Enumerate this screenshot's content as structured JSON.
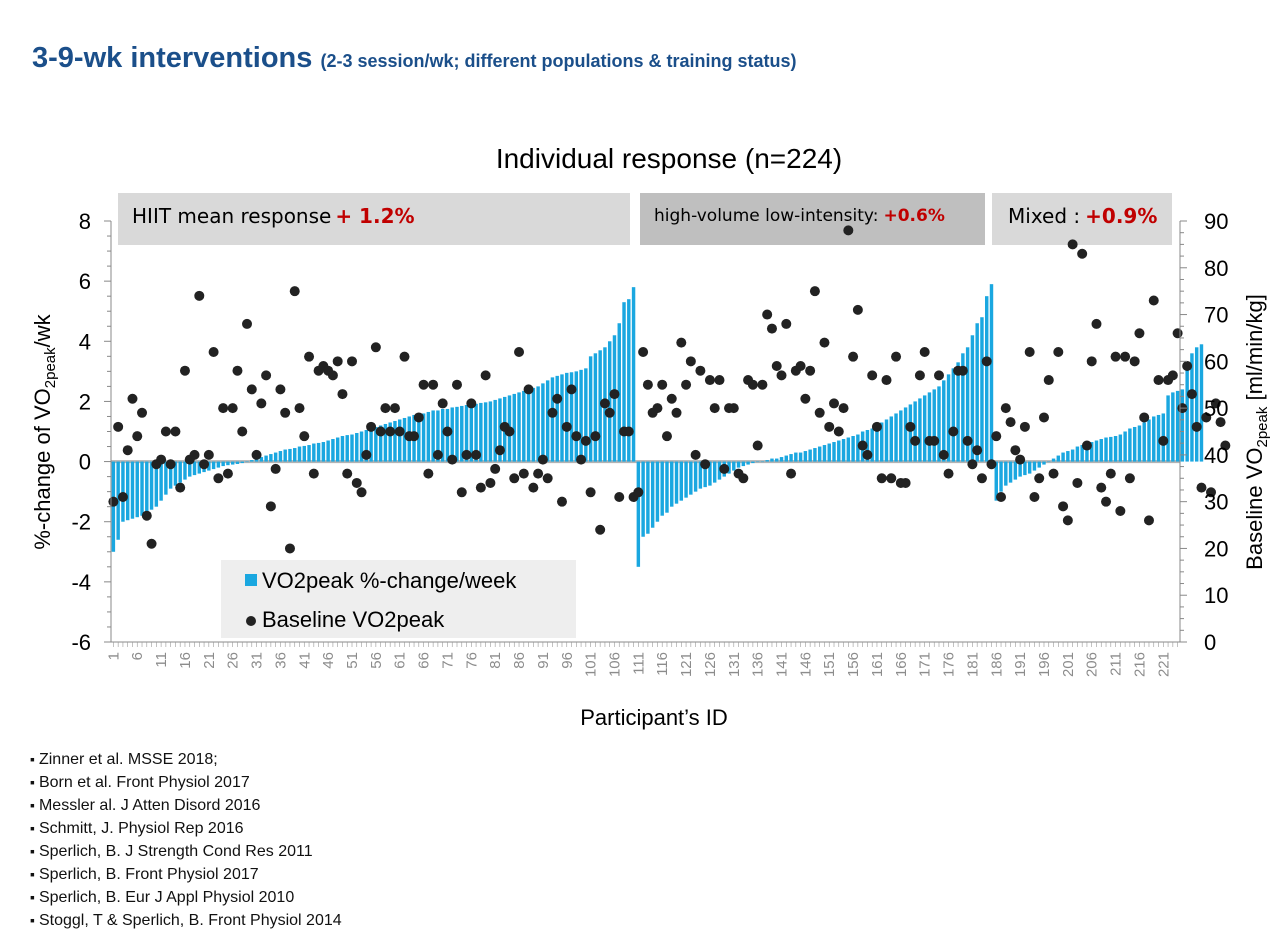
{
  "slide": {
    "title_main": "3-9-wk interventions",
    "title_sub": "(2-3 session/wk; different populations & training status)"
  },
  "colors": {
    "title": "#1b4f8a",
    "bar": "#1aa7e0",
    "dot": "#222222",
    "highlight": "#c00000",
    "panel_light": "#d9d9d9",
    "panel_dark": "#bfbfbf"
  },
  "chart_data": {
    "type": "bar+scatter",
    "title": "Individual response (n=224)",
    "xlabel": "Participant’s ID",
    "ylabel_left": "%-change of VO2peak/wk",
    "ylabel_right": "Baseline VO2peak [ml/min/kg]",
    "ylim_left": [
      -6,
      8
    ],
    "ylim_right": [
      0,
      90
    ],
    "yticks_left": [
      -6,
      -4,
      -2,
      0,
      2,
      4,
      6,
      8
    ],
    "yticks_right": [
      0,
      10,
      20,
      30,
      40,
      50,
      60,
      70,
      80,
      90
    ],
    "x_range": [
      1,
      224
    ],
    "x_ticks": [
      1,
      6,
      11,
      16,
      21,
      26,
      31,
      36,
      41,
      46,
      51,
      56,
      61,
      66,
      71,
      76,
      81,
      86,
      91,
      96,
      101,
      106,
      111,
      116,
      121,
      126,
      131,
      136,
      141,
      146,
      151,
      156,
      161,
      166,
      171,
      176,
      181,
      186,
      191,
      196,
      201,
      206,
      211,
      216,
      221
    ],
    "groups": [
      {
        "name": "HIIT",
        "label": "HIIT mean response",
        "value": "+ 1.2%",
        "from": 1,
        "to": 110
      },
      {
        "name": "HVLIT",
        "label": "high-volume low-intensity:",
        "value": "+0.6%",
        "from": 111,
        "to": 184
      },
      {
        "name": "Mixed",
        "label": "Mixed :",
        "value": "+0.9%",
        "from": 185,
        "to": 224
      }
    ],
    "legend": {
      "bars": "VO2peak %-change/week",
      "dots": "Baseline VO2peak",
      "position": "bottom-left"
    },
    "series": [
      {
        "name": "VO2peak %-change/week",
        "axis": "left",
        "values": [
          -3.0,
          -2.6,
          -2.0,
          -1.95,
          -1.9,
          -1.85,
          -1.8,
          -1.7,
          -1.6,
          -1.5,
          -1.3,
          -1.1,
          -0.9,
          -0.8,
          -0.7,
          -0.6,
          -0.5,
          -0.45,
          -0.4,
          -0.35,
          -0.3,
          -0.25,
          -0.2,
          -0.15,
          -0.12,
          -0.1,
          -0.08,
          -0.05,
          0.0,
          0.05,
          0.1,
          0.15,
          0.2,
          0.25,
          0.3,
          0.35,
          0.4,
          0.42,
          0.45,
          0.5,
          0.52,
          0.55,
          0.6,
          0.62,
          0.65,
          0.7,
          0.75,
          0.8,
          0.85,
          0.88,
          0.9,
          0.95,
          1.0,
          1.05,
          1.1,
          1.15,
          1.2,
          1.25,
          1.3,
          1.35,
          1.4,
          1.45,
          1.5,
          1.55,
          1.6,
          1.6,
          1.65,
          1.7,
          1.7,
          1.75,
          1.75,
          1.8,
          1.82,
          1.85,
          1.88,
          1.9,
          1.92,
          1.95,
          1.97,
          2.0,
          2.05,
          2.1,
          2.15,
          2.2,
          2.25,
          2.3,
          2.35,
          2.4,
          2.45,
          2.5,
          2.6,
          2.7,
          2.8,
          2.85,
          2.9,
          2.95,
          2.97,
          3.0,
          3.05,
          3.1,
          3.5,
          3.6,
          3.7,
          3.8,
          4.0,
          4.2,
          4.6,
          5.3,
          5.4,
          5.8,
          -3.5,
          -2.5,
          -2.4,
          -2.2,
          -2.0,
          -1.8,
          -1.7,
          -1.5,
          -1.4,
          -1.3,
          -1.2,
          -1.1,
          -1.0,
          -0.9,
          -0.85,
          -0.8,
          -0.7,
          -0.6,
          -0.5,
          -0.4,
          -0.3,
          -0.2,
          -0.15,
          -0.1,
          -0.05,
          0.0,
          0.0,
          0.05,
          0.1,
          0.1,
          0.15,
          0.2,
          0.25,
          0.3,
          0.3,
          0.35,
          0.4,
          0.45,
          0.5,
          0.55,
          0.6,
          0.65,
          0.7,
          0.75,
          0.8,
          0.85,
          0.9,
          1.0,
          1.05,
          1.1,
          1.2,
          1.3,
          1.4,
          1.5,
          1.6,
          1.7,
          1.8,
          1.9,
          2.0,
          2.1,
          2.2,
          2.3,
          2.4,
          2.5,
          2.7,
          2.9,
          3.1,
          3.3,
          3.6,
          3.8,
          4.2,
          4.6,
          4.8,
          5.5,
          5.9,
          -1.3,
          -1.0,
          -0.8,
          -0.7,
          -0.6,
          -0.5,
          -0.45,
          -0.4,
          -0.3,
          -0.2,
          -0.1,
          0.0,
          0.1,
          0.2,
          0.3,
          0.35,
          0.4,
          0.5,
          0.55,
          0.6,
          0.65,
          0.7,
          0.75,
          0.8,
          0.82,
          0.85,
          0.9,
          1.0,
          1.1,
          1.15,
          1.2,
          1.3,
          1.4,
          1.5,
          1.55,
          1.6,
          2.2,
          2.3,
          2.35,
          2.4,
          3.2,
          3.6,
          3.8,
          3.9
        ]
      },
      {
        "name": "Baseline VO2peak",
        "axis": "right",
        "values": [
          30,
          46,
          31,
          41,
          52,
          44,
          49,
          27,
          21,
          38,
          39,
          45,
          38,
          45,
          33,
          58,
          39,
          40,
          74,
          38,
          40,
          62,
          35,
          50,
          36,
          50,
          58,
          45,
          68,
          54,
          40,
          51,
          57,
          29,
          37,
          54,
          49,
          20,
          75,
          50,
          44,
          61,
          36,
          58,
          59,
          58,
          57,
          60,
          53,
          36,
          60,
          34,
          32,
          40,
          46,
          63,
          45,
          50,
          45,
          50,
          45,
          61,
          44,
          44,
          48,
          55,
          36,
          55,
          40,
          51,
          45,
          39,
          55,
          32,
          40,
          51,
          40,
          33,
          57,
          34,
          37,
          41,
          46,
          45,
          35,
          62,
          36,
          54,
          33,
          36,
          39,
          35,
          49,
          52,
          30,
          46,
          54,
          44,
          39,
          43,
          32,
          44,
          24,
          51,
          49,
          53,
          31,
          45,
          45,
          31,
          32,
          62,
          55,
          49,
          50,
          55,
          44,
          52,
          49,
          64,
          55,
          60,
          40,
          58,
          38,
          56,
          50,
          56,
          37,
          50,
          50,
          36,
          35,
          56,
          55,
          42,
          55,
          70,
          67,
          59,
          57,
          68,
          36,
          58,
          59,
          52,
          58,
          75,
          49,
          64,
          46,
          51,
          45,
          50,
          88,
          61,
          71,
          42,
          40,
          57,
          46,
          35,
          56,
          35,
          61,
          34,
          34,
          46,
          43,
          57,
          62,
          43,
          43,
          57,
          40,
          36,
          45,
          58,
          58,
          43,
          38,
          41,
          35,
          60,
          38,
          44,
          31,
          50,
          47,
          41,
          39,
          46,
          62,
          31,
          35,
          48,
          56,
          36,
          62,
          29,
          26,
          85,
          34,
          83,
          42,
          60,
          68,
          33,
          30,
          36,
          61,
          28,
          61,
          35,
          60,
          66,
          48,
          26,
          73,
          56,
          43,
          56,
          57,
          66,
          50,
          59,
          53,
          46,
          33,
          48,
          32,
          51,
          47,
          42
        ]
      }
    ]
  },
  "references": [
    "Zinner et al. MSSE 2018;",
    "Born et al. Front Physiol 2017",
    "Messler al.  J Atten Disord 2016",
    "Schmitt, J. Physiol Rep 2016",
    "Sperlich, B. J Strength Cond Res 2011",
    "Sperlich, B. Front Physiol 2017",
    "Sperlich, B. Eur J Appl Physiol 2010",
    "Stoggl, T & Sperlich, B. Front Physiol 2014"
  ]
}
